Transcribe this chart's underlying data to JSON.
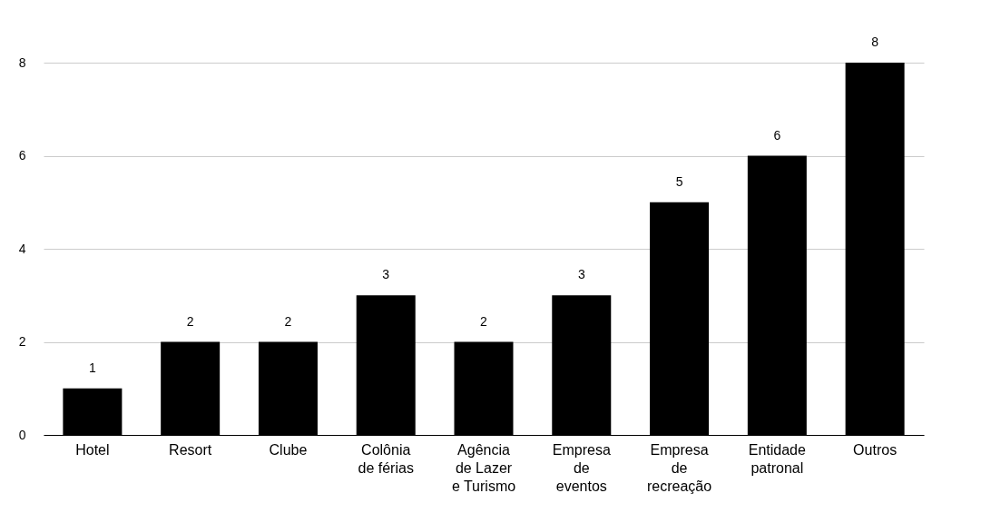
{
  "chart_data": {
    "type": "bar",
    "categories": [
      "Hotel",
      "Resort",
      "Clube",
      "Colônia de férias",
      "Agência de Lazer e Turismo",
      "Empresa de eventos",
      "Empresa de recreação",
      "Entidade patronal",
      "Outros"
    ],
    "values": [
      1,
      2,
      2,
      3,
      2,
      3,
      5,
      6,
      8
    ],
    "color": "#000000",
    "ylim": [
      0,
      8
    ],
    "yticks": [
      0,
      2,
      4,
      6,
      8
    ],
    "grid": "y",
    "data_labels": true
  }
}
